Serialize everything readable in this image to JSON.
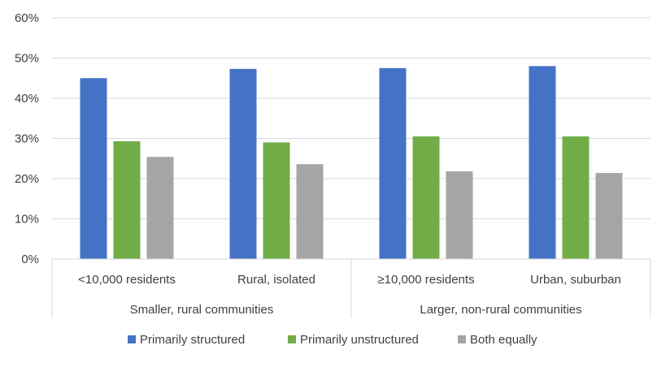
{
  "chart_data": {
    "type": "bar",
    "title": "",
    "xlabel": "",
    "ylabel": "",
    "ylim": [
      0,
      60
    ],
    "y_ticks": [
      "0%",
      "10%",
      "20%",
      "30%",
      "40%",
      "50%",
      "60%"
    ],
    "y_tick_values": [
      0,
      10,
      20,
      30,
      40,
      50,
      60
    ],
    "grid": true,
    "legend_position": "bottom",
    "categories": [
      "<10,000 residents",
      "Rural, isolated",
      "≥10,000 residents",
      "Urban, suburban"
    ],
    "groups": [
      {
        "label": "Smaller, rural communities",
        "categories": [
          "<10,000 residents",
          "Rural, isolated"
        ]
      },
      {
        "label": "Larger, non-rural communities",
        "categories": [
          "≥10,000 residents",
          "Urban, suburban"
        ]
      }
    ],
    "series": [
      {
        "name": "Primarily structured",
        "color": "#4472C4",
        "values": [
          45,
          47.3,
          47.5,
          48
        ]
      },
      {
        "name": "Primarily unstructured",
        "color": "#70AD47",
        "values": [
          29.3,
          29,
          30.5,
          30.5
        ]
      },
      {
        "name": "Both equally",
        "color": "#A5A5A5",
        "values": [
          25.4,
          23.6,
          21.8,
          21.4
        ]
      }
    ]
  }
}
